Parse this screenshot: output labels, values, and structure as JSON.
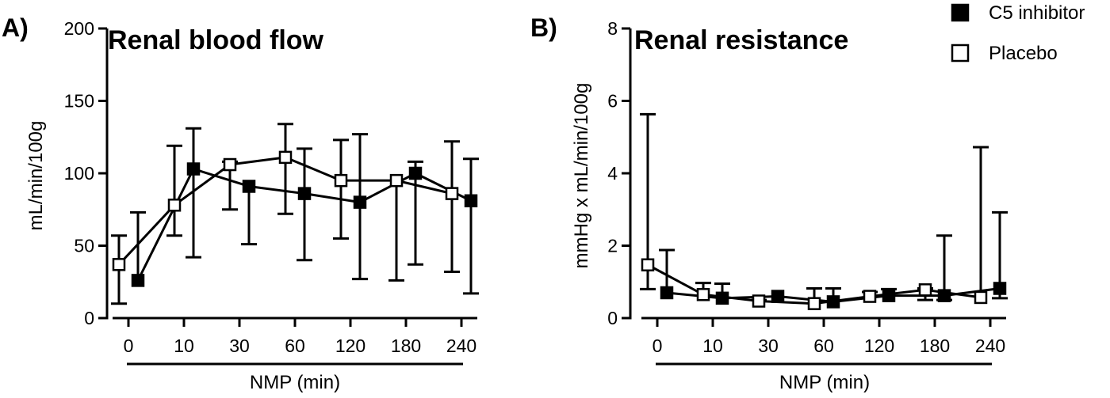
{
  "chart_data": [
    {
      "type": "line",
      "panel_label": "A)",
      "title": "Renal blood flow",
      "xlabel": "NMP (min)",
      "ylabel": "mL/min/100g",
      "categories": [
        "0",
        "10",
        "30",
        "60",
        "120",
        "180",
        "240"
      ],
      "ylim": [
        0,
        200
      ],
      "yticks": [
        "0",
        "50",
        "100",
        "150",
        "200"
      ],
      "series": [
        {
          "name": "C5 inhibitor",
          "marker": "filled-square",
          "color": "#000000",
          "values": [
            26,
            103,
            91,
            86,
            80,
            100,
            81
          ],
          "err_upper": [
            73,
            131,
            null,
            117,
            127,
            108,
            110
          ],
          "err_lower": [
            null,
            42,
            51,
            40,
            27,
            37,
            17
          ]
        },
        {
          "name": "Placebo",
          "marker": "open-square",
          "color": "#000000",
          "values": [
            37,
            78,
            106,
            111,
            95,
            95,
            86
          ],
          "err_upper": [
            57,
            119,
            108,
            134,
            123,
            null,
            122
          ],
          "err_lower": [
            10,
            57,
            75,
            72,
            55,
            26,
            32
          ]
        }
      ]
    },
    {
      "type": "line",
      "panel_label": "B)",
      "title": "Renal resistance",
      "xlabel": "NMP (min)",
      "ylabel": "mmHg x mL/min/100g",
      "categories": [
        "0",
        "10",
        "30",
        "60",
        "120",
        "180",
        "240"
      ],
      "ylim": [
        0,
        8
      ],
      "yticks": [
        "0",
        "2",
        "4",
        "6",
        "8"
      ],
      "series": [
        {
          "name": "C5 inhibitor",
          "marker": "filled-square",
          "color": "#000000",
          "values": [
            0.7,
            0.55,
            0.6,
            0.45,
            0.62,
            0.62,
            0.82
          ],
          "err_upper": [
            1.88,
            0.95,
            null,
            0.82,
            0.8,
            2.28,
            2.92
          ],
          "err_lower": [
            null,
            null,
            null,
            null,
            null,
            0.5,
            0.55
          ]
        },
        {
          "name": "Placebo",
          "marker": "open-square",
          "color": "#000000",
          "values": [
            1.47,
            0.65,
            0.47,
            0.4,
            0.6,
            0.78,
            0.57
          ],
          "err_upper": [
            5.63,
            0.97,
            0.5,
            0.82,
            0.72,
            0.82,
            4.72
          ],
          "err_lower": [
            0.8,
            null,
            null,
            null,
            null,
            0.5,
            null
          ]
        }
      ]
    }
  ],
  "legend": {
    "placement": "top-right",
    "items": [
      {
        "label": "C5 inhibitor",
        "marker": "filled-square"
      },
      {
        "label": "Placebo",
        "marker": "open-square"
      }
    ]
  }
}
